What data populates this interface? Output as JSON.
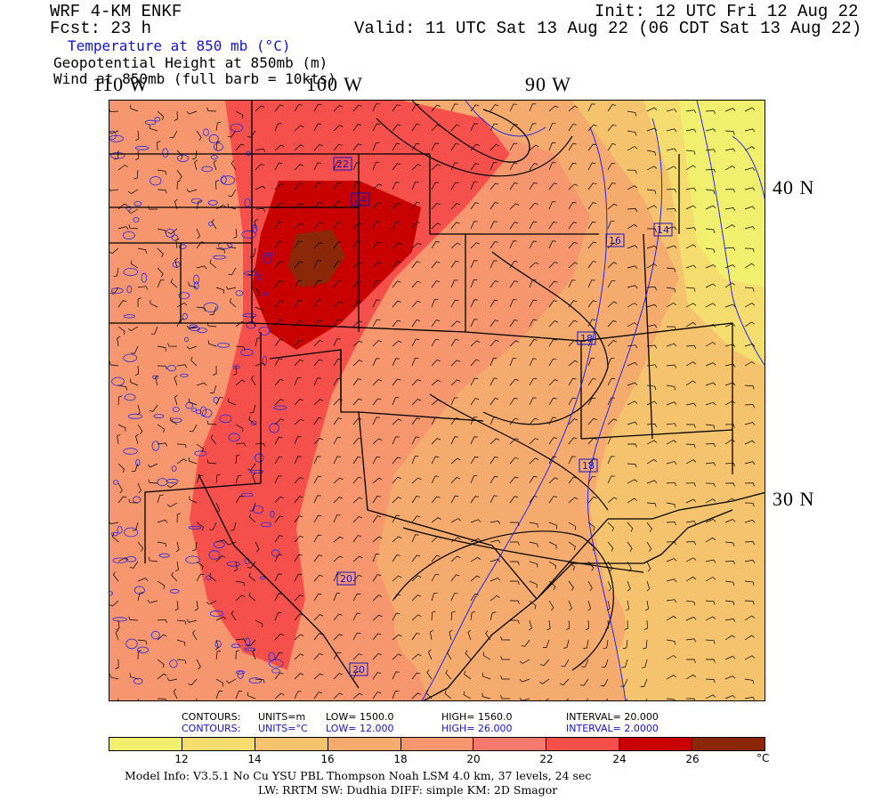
{
  "header": {
    "model": "WRF 4-KM ENKF",
    "forecast": "Fcst:   23 h",
    "init": "Init: 12 UTC Fri 12 Aug 22",
    "valid": "Valid: 11 UTC Sat 13 Aug 22 (06 CDT Sat 13 Aug 22)"
  },
  "fields": {
    "temperature": "Temperature at 850 mb (°C)",
    "height": "Geopotential Height at 850mb (m)",
    "wind": "Wind at 850mb (full barb = 10kts)"
  },
  "axes": {
    "lon_labels": [
      "110 W",
      "100 W",
      "90 W"
    ],
    "lat_labels": [
      "40 N",
      "30 N"
    ]
  },
  "map_labels": {
    "contour_values": [
      "22",
      "24",
      "16",
      "14",
      "18",
      "18",
      "20",
      "20"
    ]
  },
  "contours_height": {
    "title": "CONTOURS:",
    "units": "UNITS=m",
    "low": "LOW=   1500.0",
    "high": "HIGH=  1560.0",
    "interval": "INTERVAL=   20.000"
  },
  "contours_temp": {
    "title": "CONTOURS:",
    "units": "UNITS=°C",
    "low": "LOW=  12.000",
    "high": "HIGH=  26.000",
    "interval": "INTERVAL=   2.0000"
  },
  "colorbar": {
    "colors": [
      "#f0f06e",
      "#f5dc6e",
      "#f5c36e",
      "#f5aa6e",
      "#f5966e",
      "#f57a6e",
      "#f5504b",
      "#c80000",
      "#8c280a"
    ],
    "tick_labels": [
      "12",
      "14",
      "16",
      "18",
      "20",
      "22",
      "24",
      "26"
    ],
    "unit": "°C"
  },
  "footer": {
    "line1": "Model Info: V3.5.1    No Cu    YSU PBL   Thompson      Noah LSM  4.0 km,  37 levels,   24 sec",
    "line2": "LW: RRTM  SW: Dudhia  DIFF: simple  KM: 2D Smagor"
  }
}
